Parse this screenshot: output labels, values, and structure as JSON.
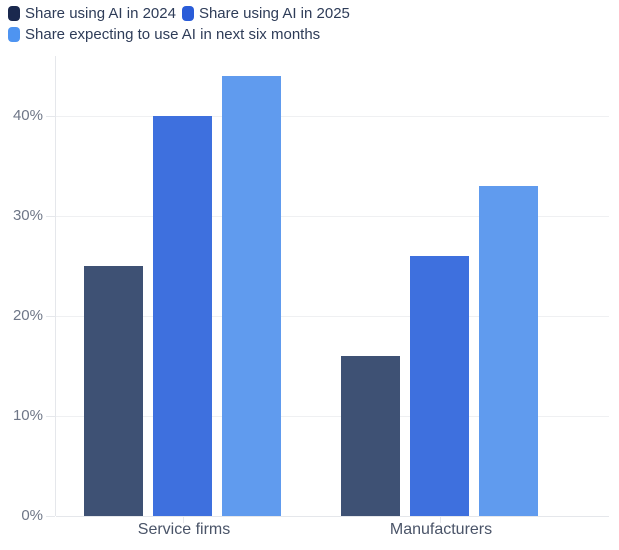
{
  "chart_data": {
    "type": "bar",
    "title": "",
    "xlabel": "",
    "ylabel": "",
    "categories": [
      "Service firms",
      "Manufacturers"
    ],
    "series": [
      {
        "name": "Share using AI in 2024",
        "values": [
          25,
          16
        ],
        "bar_color": "#3E5174",
        "legend_color": "#1A284E"
      },
      {
        "name": "Share using AI in 2025",
        "values": [
          40,
          26
        ],
        "bar_color": "#3E70DE",
        "legend_color": "#2A5CD8"
      },
      {
        "name": "Share expecting to use AI in next six months",
        "values": [
          44,
          33
        ],
        "bar_color": "#609BEE",
        "legend_color": "#4E94F1"
      }
    ],
    "value_unit": "%",
    "ylim": [
      0,
      46
    ],
    "y_axis": {
      "tick_values": [
        0,
        10,
        20,
        30,
        40
      ],
      "tick_labels": [
        "0%",
        "10%",
        "20%",
        "30%",
        "40%"
      ]
    },
    "grid": true,
    "legend_position": "top-left"
  },
  "colors": {
    "background": "#FFFFFF",
    "gridline": "#EFF0F2",
    "axis_line": "#E5E7EB",
    "legend_text": "#2E3C58",
    "y_tick_text": "#6E7687",
    "category_text": "#4A5468"
  }
}
